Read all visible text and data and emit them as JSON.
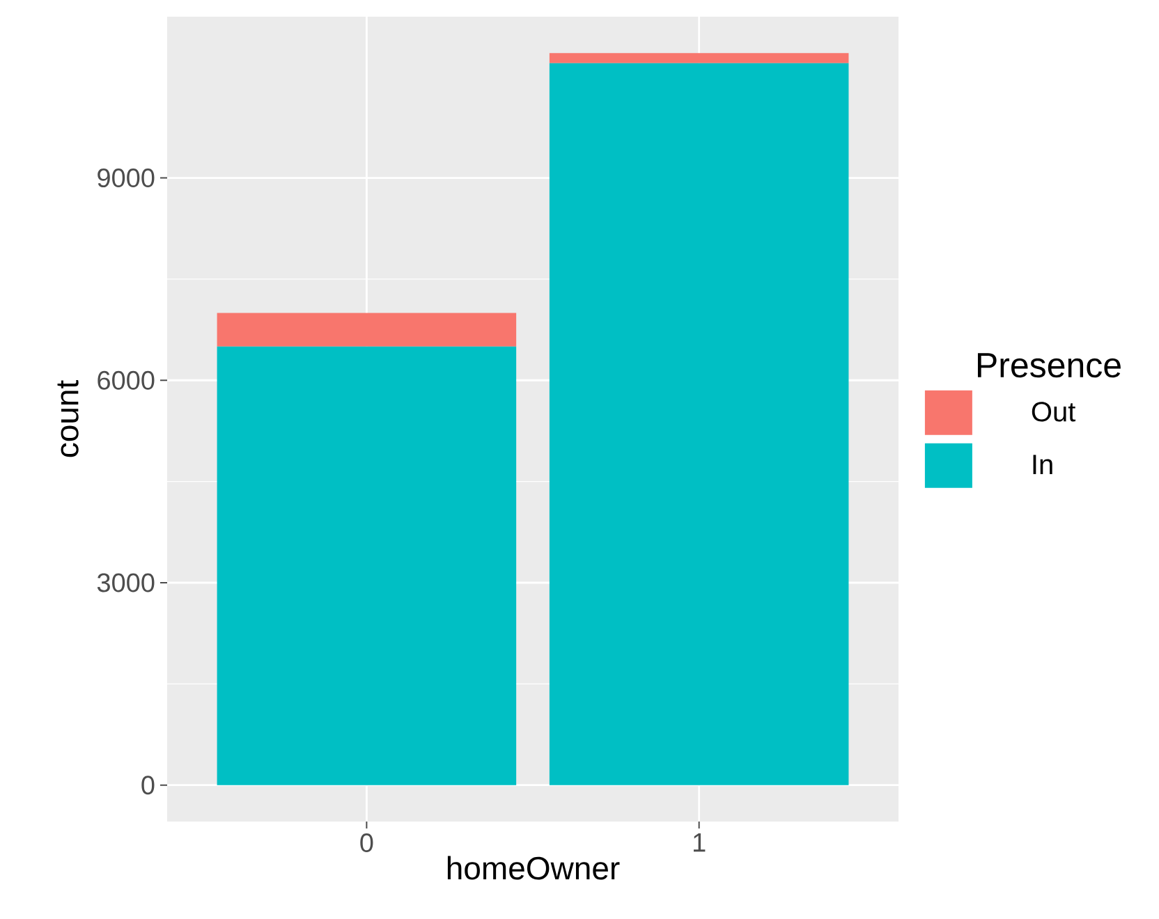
{
  "chart_data": {
    "type": "bar",
    "stacked": true,
    "xlabel": "homeOwner",
    "ylabel": "count",
    "legend_title": "Presence",
    "categories": [
      "0",
      "1"
    ],
    "series": [
      {
        "name": "In",
        "color": "#00bfc4",
        "values": [
          6500,
          10700
        ]
      },
      {
        "name": "Out",
        "color": "#f8766d",
        "values": [
          500,
          150
        ]
      }
    ],
    "ylim": [
      -540,
      11390
    ],
    "yticks": [
      0,
      3000,
      6000,
      9000
    ],
    "grid": true,
    "legend": "right"
  }
}
